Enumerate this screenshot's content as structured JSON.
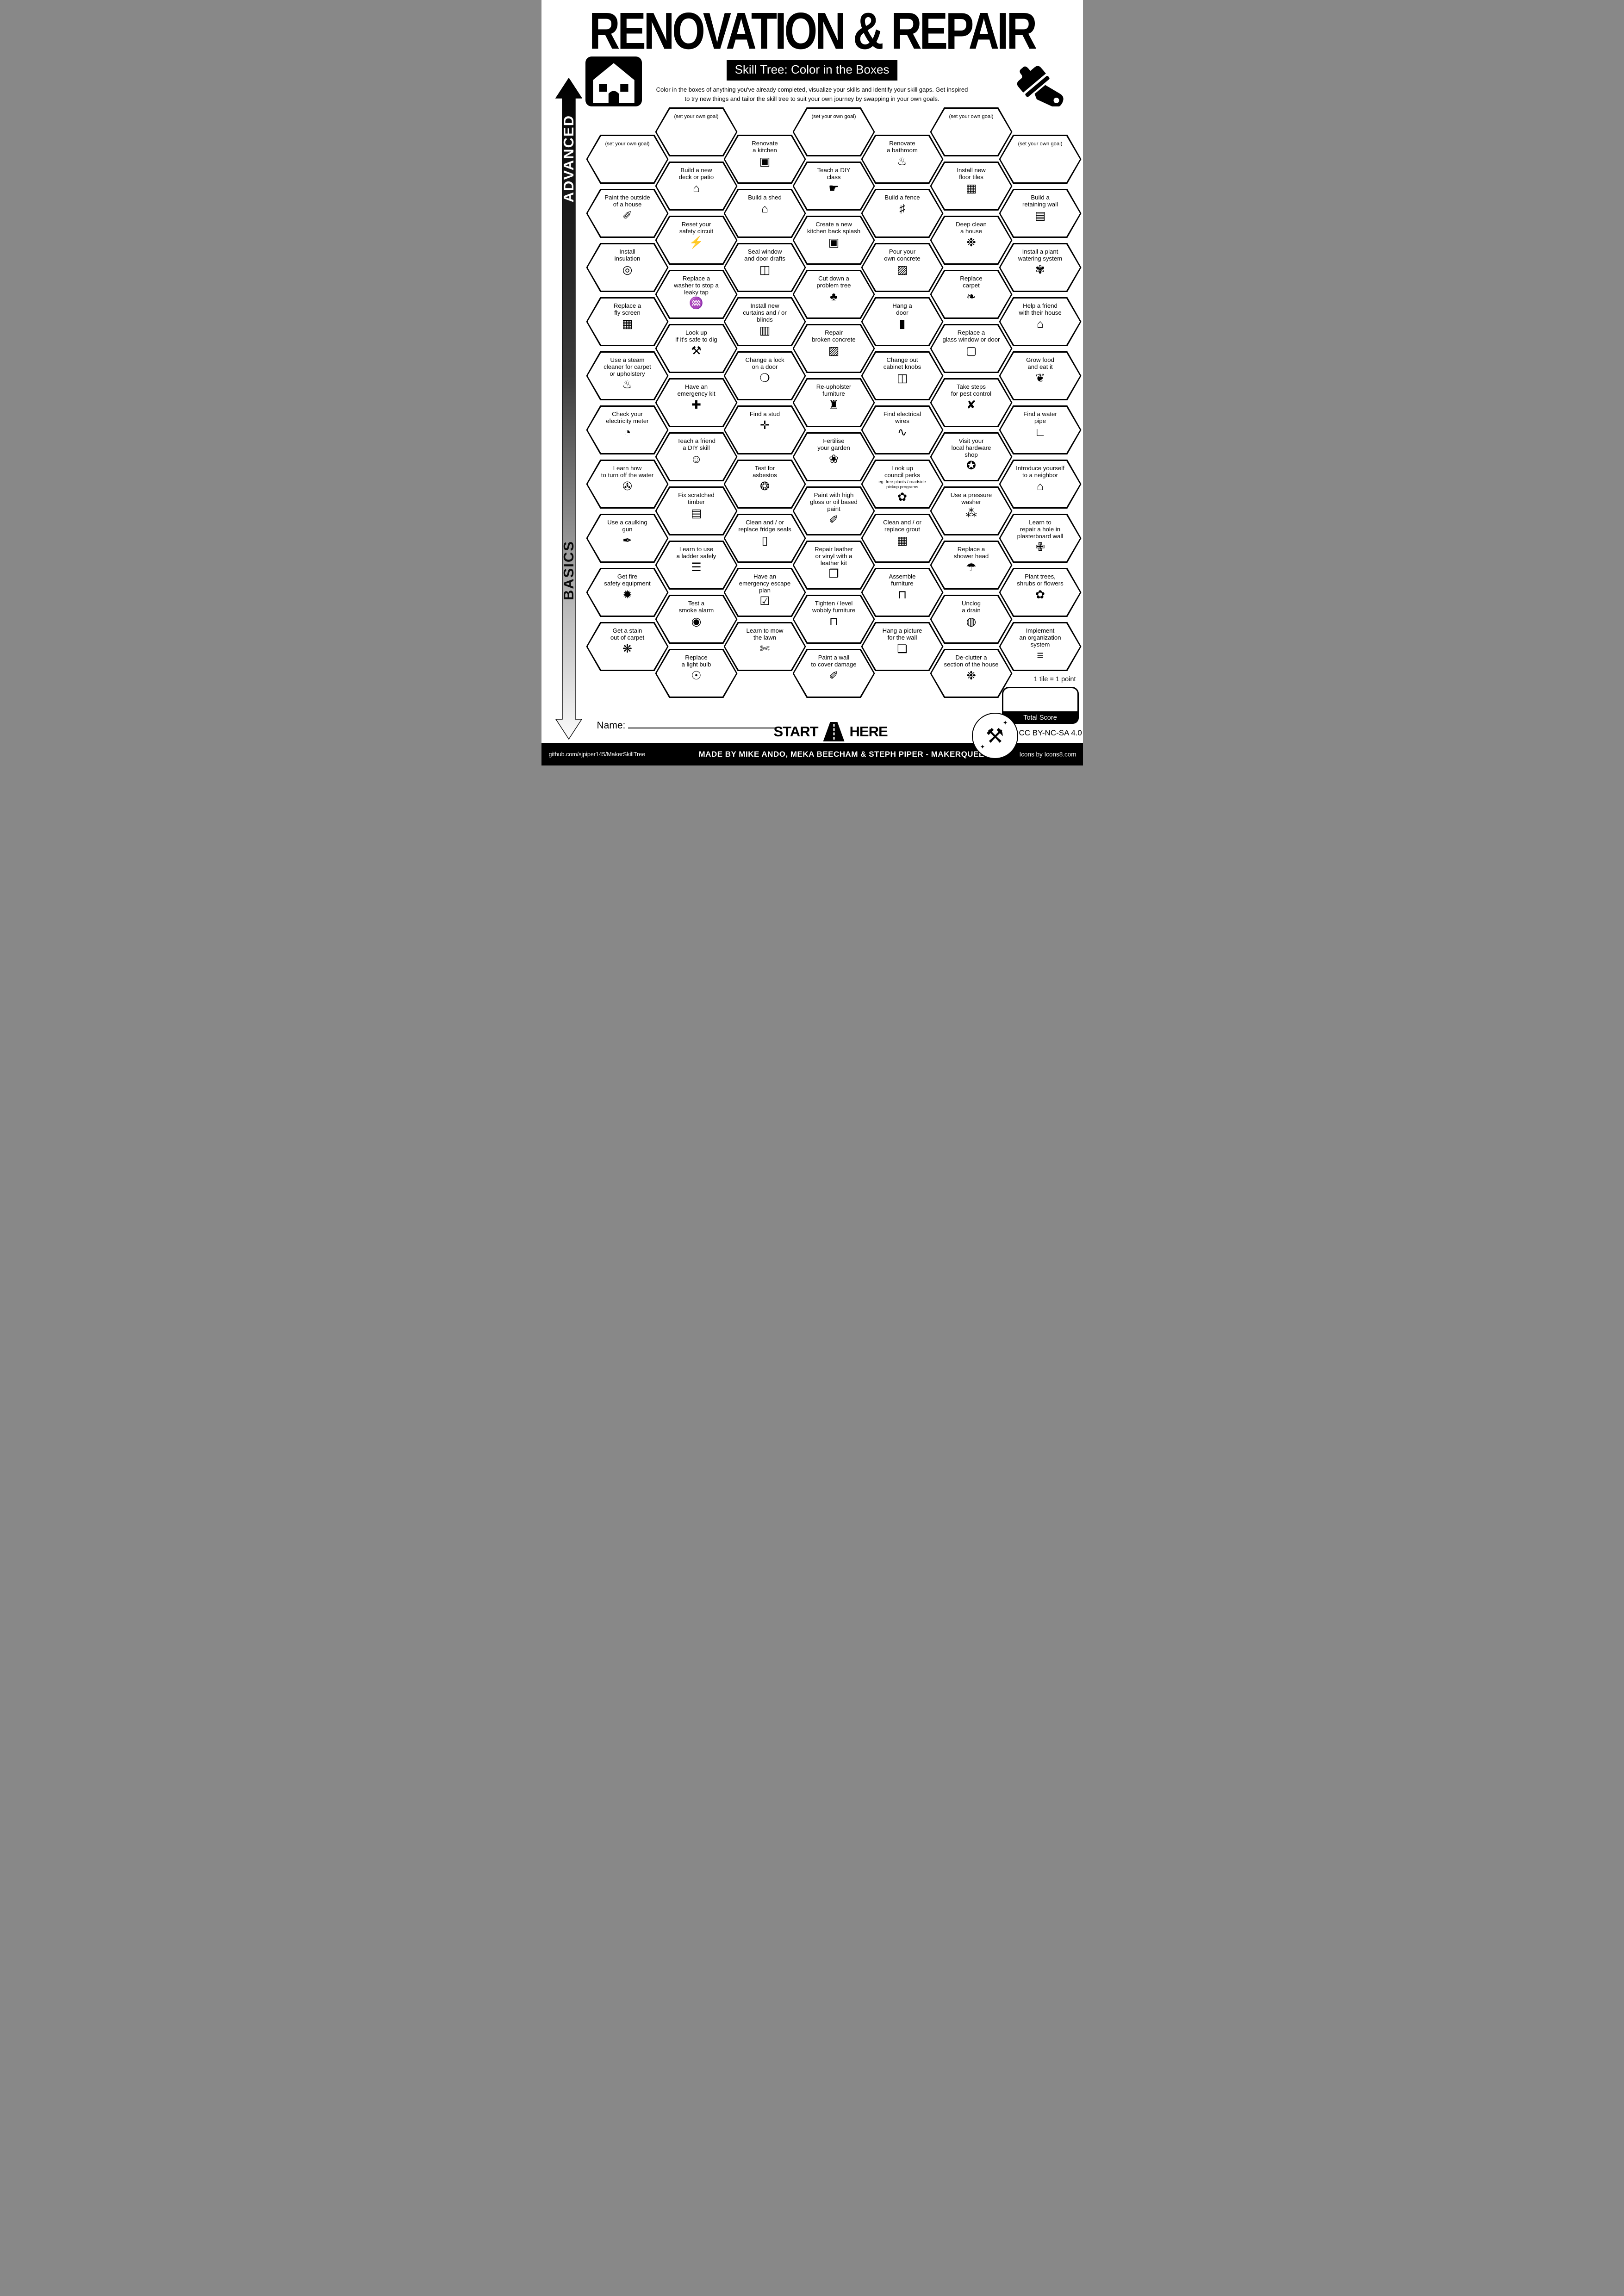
{
  "page": {
    "title": "RENOVATION & REPAIR",
    "subtitle": "Skill Tree: Color in the Boxes",
    "description": "Color in the boxes of anything you've already completed, visualize your skills and identify your skill gaps.  Get inspired\nto try new things and tailor the skill tree to suit your own journey by swapping in your own goals.",
    "advanced_label": "ADVANCED",
    "basics_label": "BASICS",
    "start_label": "START",
    "here_label": "HERE",
    "name_label": "Name:",
    "points_note": "1 tile = 1 point",
    "total_score_label": "Total Score",
    "license": "CC BY-NC-SA 4.0",
    "footer": {
      "left": "github.com/sjpiper145/MakerSkillTree",
      "center": "MADE BY MIKE ANDO, MEKA BEECHAM & STEPH PIPER  -  MAKERQUEEN AU",
      "right": "Icons by Icons8.com"
    },
    "colors": {
      "ink": "#000000",
      "paper": "#ffffff"
    },
    "icon_names": [
      "house-icon",
      "paint-brush-icon",
      "road-icon",
      "crossed-tools-icon"
    ]
  },
  "columns": [
    {
      "tiles": [
        {
          "label": "(set your own goal)",
          "icon": "goal",
          "glyph": ""
        },
        {
          "label": "Paint the outside\nof a house",
          "icon": "paint-brush",
          "glyph": "✐"
        },
        {
          "label": "Install\ninsulation",
          "icon": "insulation-roll",
          "glyph": "◎"
        },
        {
          "label": "Replace a\nfly screen",
          "icon": "mesh-screen",
          "glyph": "▦"
        },
        {
          "label": "Use a steam\ncleaner for carpet\nor upholstery",
          "icon": "steam-cleaner",
          "glyph": "♨"
        },
        {
          "label": "Check your\nelectricity meter",
          "icon": "electricity-meter",
          "glyph": "◔"
        },
        {
          "label": "Learn how\nto turn off the water",
          "icon": "water-valve",
          "glyph": "✇"
        },
        {
          "label": "Use a caulking\ngun",
          "icon": "caulking-gun",
          "glyph": "✒"
        },
        {
          "label": "Get fire\nsafety equipment",
          "icon": "fire-extinguisher",
          "glyph": "✹"
        },
        {
          "label": "Get a stain\nout of carpet",
          "icon": "stain-sparkles",
          "glyph": "❋"
        }
      ]
    },
    {
      "tiles": [
        {
          "label": "(set your own goal)",
          "icon": "goal",
          "glyph": ""
        },
        {
          "label": "Build a new\ndeck or patio",
          "icon": "deck-house",
          "glyph": "⌂"
        },
        {
          "label": "Reset your\nsafety circuit",
          "icon": "safety-circuit",
          "glyph": "⚡"
        },
        {
          "label": "Replace a\nwasher to stop a\nleaky tap",
          "icon": "leaky-tap",
          "glyph": "♒"
        },
        {
          "label": "Look up\nif it's safe to dig",
          "icon": "shovel",
          "glyph": "⚒"
        },
        {
          "label": "Have an\nemergency kit",
          "icon": "first-aid-kit",
          "glyph": "✚"
        },
        {
          "label": "Teach a friend\na DIY skill",
          "icon": "friends-teaching",
          "glyph": "☺"
        },
        {
          "label": "Fix scratched\ntimber",
          "icon": "timber-plank",
          "glyph": "▤"
        },
        {
          "label": "Learn to use\na ladder safely",
          "icon": "ladder",
          "glyph": "☰"
        },
        {
          "label": "Test a\nsmoke alarm",
          "icon": "smoke-alarm",
          "glyph": "◉"
        },
        {
          "label": "Replace\na light bulb",
          "icon": "light-bulb",
          "glyph": "☉"
        }
      ]
    },
    {
      "tiles": [
        {
          "label": "Renovate\na kitchen",
          "icon": "kitchen-cabinet",
          "glyph": "▣"
        },
        {
          "label": "Build a shed",
          "icon": "shed",
          "glyph": "⌂"
        },
        {
          "label": "Seal window\nand door drafts",
          "icon": "door-draft",
          "glyph": "◫"
        },
        {
          "label": "Install new\ncurtains and / or\nblinds",
          "icon": "curtains",
          "glyph": "▥"
        },
        {
          "label": "Change a lock\non a door",
          "icon": "door-lock",
          "glyph": "❍"
        },
        {
          "label": "Find a stud",
          "icon": "stud-nail",
          "glyph": "✛"
        },
        {
          "label": "Test for\nasbestos",
          "icon": "respirator-mask",
          "glyph": "❂"
        },
        {
          "label": "Clean and / or\nreplace fridge seals",
          "icon": "fridge",
          "glyph": "▯"
        },
        {
          "label": "Have an\nemergency escape\nplan",
          "icon": "checklist",
          "glyph": "☑"
        },
        {
          "label": "Learn to mow\nthe lawn",
          "icon": "lawn-mower",
          "glyph": "✄"
        }
      ]
    },
    {
      "tiles": [
        {
          "label": "(set your own goal)",
          "icon": "goal",
          "glyph": ""
        },
        {
          "label": "Teach a DIY\nclass",
          "icon": "presenter",
          "glyph": "☛"
        },
        {
          "label": "Create a new\nkitchen back splash",
          "icon": "kitchen-backsplash",
          "glyph": "▣"
        },
        {
          "label": "Cut down a\nproblem tree",
          "icon": "tree-stump",
          "glyph": "♣"
        },
        {
          "label": "Repair\nbroken concrete",
          "icon": "cement-bag",
          "glyph": "▨"
        },
        {
          "label": "Re-upholster\nfurniture",
          "icon": "chair",
          "glyph": "♜"
        },
        {
          "label": "Fertilise\nyour garden",
          "icon": "plant-sprout",
          "glyph": "❀"
        },
        {
          "label": "Paint with high\ngloss or oil based\npaint",
          "icon": "paint-brush",
          "glyph": "✐"
        },
        {
          "label": "Repair leather\nor vinyl with a\nleather kit",
          "icon": "leather-patch",
          "glyph": "❐"
        },
        {
          "label": "Tighten / level\nwobbly furniture",
          "icon": "table",
          "glyph": "⊓"
        },
        {
          "label": "Paint a wall\nto cover damage",
          "icon": "paint-brush",
          "glyph": "✐"
        }
      ]
    },
    {
      "tiles": [
        {
          "label": "Renovate\na bathroom",
          "icon": "bathtub",
          "glyph": "♨"
        },
        {
          "label": "Build a fence",
          "icon": "fence",
          "glyph": "♯"
        },
        {
          "label": "Pour your\nown concrete",
          "icon": "cement-bag",
          "glyph": "▨"
        },
        {
          "label": "Hang a\ndoor",
          "icon": "door",
          "glyph": "▮"
        },
        {
          "label": "Change out\ncabinet knobs",
          "icon": "cabinet-drawer",
          "glyph": "◫"
        },
        {
          "label": "Find electrical\nwires",
          "icon": "electrical-wires",
          "glyph": "∿"
        },
        {
          "label": "Look up\ncouncil perks",
          "note": "eg. free plants / roadside\npickup programs",
          "icon": "council-sprout",
          "glyph": "✿"
        },
        {
          "label": "Clean and / or\nreplace grout",
          "icon": "grout-tile",
          "glyph": "▦"
        },
        {
          "label": "Assemble\nfurniture",
          "icon": "table-assembly",
          "glyph": "⊓"
        },
        {
          "label": "Hang a picture\nfor the wall",
          "icon": "picture-frame",
          "glyph": "❏"
        }
      ]
    },
    {
      "tiles": [
        {
          "label": "(set your own goal)",
          "icon": "goal",
          "glyph": ""
        },
        {
          "label": "Install new\nfloor tiles",
          "icon": "floor-tiles",
          "glyph": "▦"
        },
        {
          "label": "Deep clean\na house",
          "icon": "cleaning-sparkles",
          "glyph": "❉"
        },
        {
          "label": "Replace\ncarpet",
          "icon": "carpet-roll",
          "glyph": "❧"
        },
        {
          "label": "Replace a\nglass window or door",
          "icon": "glass-window",
          "glyph": "▢"
        },
        {
          "label": "Take steps\nfor pest control",
          "icon": "no-pests",
          "glyph": "✘"
        },
        {
          "label": "Visit your\nlocal hardware\nshop",
          "icon": "location-pin",
          "glyph": "✪"
        },
        {
          "label": "Use a pressure\nwasher",
          "icon": "pressure-washer",
          "glyph": "⁂"
        },
        {
          "label": "Replace a\nshower head",
          "icon": "shower-head",
          "glyph": "☂"
        },
        {
          "label": "Unclog\na drain",
          "icon": "drain",
          "glyph": "◍"
        },
        {
          "label": "De-clutter a\nsection of the house",
          "icon": "tidy-hands",
          "glyph": "❉"
        }
      ]
    },
    {
      "tiles": [
        {
          "label": "(set your own goal)",
          "icon": "goal",
          "glyph": ""
        },
        {
          "label": "Build a\nretaining wall",
          "icon": "brick-wall",
          "glyph": "▤"
        },
        {
          "label": "Install a plant\nwatering system",
          "icon": "watering-plant",
          "glyph": "✾"
        },
        {
          "label": "Help a friend\nwith their house",
          "icon": "helping-house",
          "glyph": "⌂"
        },
        {
          "label": "Grow food\nand eat it",
          "icon": "carrot",
          "glyph": "❦"
        },
        {
          "label": "Find a water\npipe",
          "icon": "water-pipe",
          "glyph": "∟"
        },
        {
          "label": "Introduce yourself\nto a neighbor",
          "icon": "neighbor-house",
          "glyph": "⌂"
        },
        {
          "label": "Learn to\nrepair a hole in\nplasterboard wall",
          "icon": "wall-repair",
          "glyph": "✙"
        },
        {
          "label": "Plant trees,\nshrubs or flowers",
          "icon": "plant",
          "glyph": "✿"
        },
        {
          "label": "Implement\nan organization\nsystem",
          "icon": "shelf-organizer",
          "glyph": "≡"
        }
      ]
    }
  ]
}
